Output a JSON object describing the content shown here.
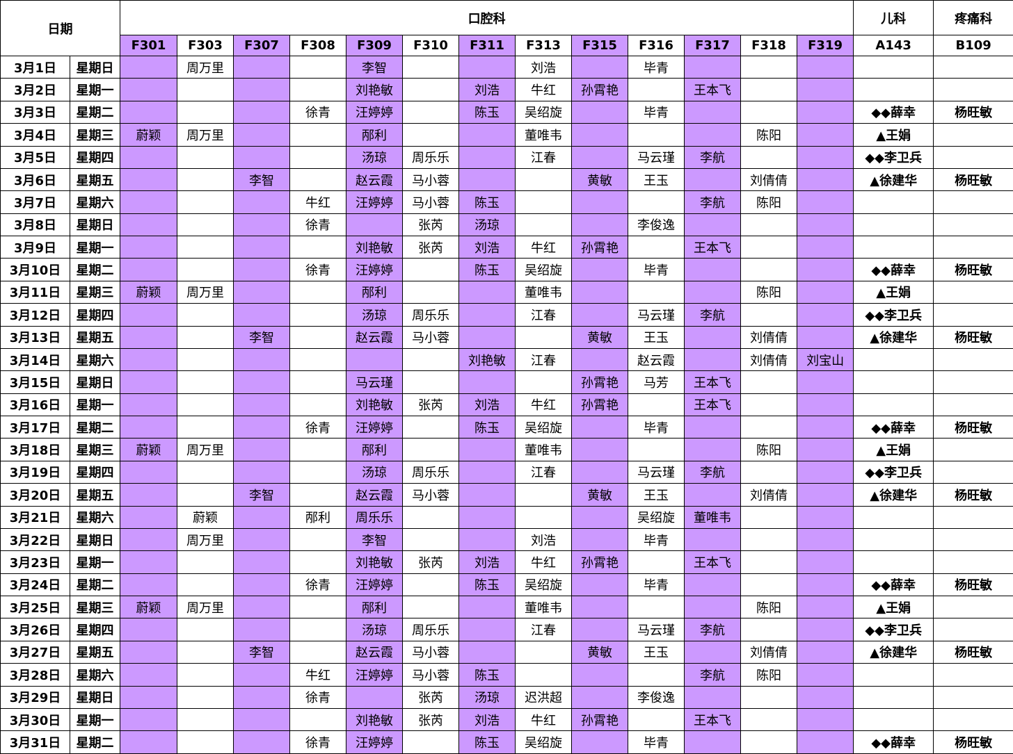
{
  "header": {
    "date": "日期",
    "groups": [
      {
        "label": "口腔科",
        "rooms": [
          "F301",
          "F303",
          "F307",
          "F308",
          "F309",
          "F310",
          "F311",
          "F313",
          "F315",
          "F316",
          "F317",
          "F318",
          "F319"
        ]
      },
      {
        "label": "儿科",
        "rooms": [
          "A143"
        ]
      },
      {
        "label": "疼痛科",
        "rooms": [
          "B109"
        ]
      }
    ]
  },
  "rows": [
    {
      "date": "3月1日",
      "weekday": "星期日",
      "cells": [
        null,
        "周万里",
        null,
        null,
        "李智",
        null,
        null,
        "刘浩",
        null,
        "毕青",
        null,
        null,
        null,
        null,
        null
      ]
    },
    {
      "date": "3月2日",
      "weekday": "星期一",
      "cells": [
        null,
        null,
        null,
        null,
        "刘艳敏",
        null,
        "刘浩",
        "牛红",
        "孙霄艳",
        null,
        "王本飞",
        null,
        null,
        null,
        null
      ]
    },
    {
      "date": "3月3日",
      "weekday": "星期二",
      "cells": [
        null,
        null,
        null,
        "徐青",
        "汪婷婷",
        null,
        "陈玉",
        "吴绍旋",
        null,
        "毕青",
        null,
        null,
        null,
        "◆◆薛幸",
        "杨旺敏"
      ]
    },
    {
      "date": "3月4日",
      "weekday": "星期三",
      "cells": [
        "蔚颖",
        "周万里",
        null,
        null,
        "邴利",
        null,
        null,
        "董唯韦",
        null,
        null,
        null,
        "陈阳",
        null,
        "▲王娟",
        null
      ]
    },
    {
      "date": "3月5日",
      "weekday": "星期四",
      "cells": [
        null,
        null,
        null,
        null,
        "汤琼",
        "周乐乐",
        null,
        "江春",
        null,
        "马云瑾",
        "李航",
        null,
        null,
        "◆◆李卫兵",
        null
      ]
    },
    {
      "date": "3月6日",
      "weekday": "星期五",
      "cells": [
        null,
        null,
        "李智",
        null,
        "赵云霞",
        "马小蓉",
        null,
        null,
        "黄敏",
        "王玉",
        null,
        "刘倩倩",
        null,
        "▲徐建华",
        "杨旺敏"
      ]
    },
    {
      "date": "3月7日",
      "weekday": "星期六",
      "cells": [
        null,
        null,
        null,
        "牛红",
        "汪婷婷",
        "马小蓉",
        "陈玉",
        null,
        null,
        null,
        "李航",
        "陈阳",
        null,
        null,
        null
      ]
    },
    {
      "date": "3月8日",
      "weekday": "星期日",
      "cells": [
        null,
        null,
        null,
        "徐青",
        null,
        "张芮",
        "汤琼",
        null,
        null,
        "李俊逸",
        null,
        null,
        null,
        null,
        null
      ]
    },
    {
      "date": "3月9日",
      "weekday": "星期一",
      "cells": [
        null,
        null,
        null,
        null,
        "刘艳敏",
        "张芮",
        "刘浩",
        "牛红",
        "孙霄艳",
        null,
        "王本飞",
        null,
        null,
        null,
        null
      ]
    },
    {
      "date": "3月10日",
      "weekday": "星期二",
      "cells": [
        null,
        null,
        null,
        "徐青",
        "汪婷婷",
        null,
        "陈玉",
        "吴绍旋",
        null,
        "毕青",
        null,
        null,
        null,
        "◆◆薛幸",
        "杨旺敏"
      ]
    },
    {
      "date": "3月11日",
      "weekday": "星期三",
      "cells": [
        "蔚颖",
        "周万里",
        null,
        null,
        "邴利",
        null,
        null,
        "董唯韦",
        null,
        null,
        null,
        "陈阳",
        null,
        "▲王娟",
        null
      ]
    },
    {
      "date": "3月12日",
      "weekday": "星期四",
      "cells": [
        null,
        null,
        null,
        null,
        "汤琼",
        "周乐乐",
        null,
        "江春",
        null,
        "马云瑾",
        "李航",
        null,
        null,
        "◆◆李卫兵",
        null
      ]
    },
    {
      "date": "3月13日",
      "weekday": "星期五",
      "cells": [
        null,
        null,
        "李智",
        null,
        "赵云霞",
        "马小蓉",
        null,
        null,
        "黄敏",
        "王玉",
        null,
        "刘倩倩",
        null,
        "▲徐建华",
        "杨旺敏"
      ]
    },
    {
      "date": "3月14日",
      "weekday": "星期六",
      "cells": [
        null,
        null,
        null,
        null,
        null,
        null,
        "刘艳敏",
        "江春",
        null,
        "赵云霞",
        null,
        "刘倩倩",
        "刘宝山",
        null,
        null
      ]
    },
    {
      "date": "3月15日",
      "weekday": "星期日",
      "cells": [
        null,
        null,
        null,
        null,
        "马云瑾",
        null,
        null,
        null,
        "孙霄艳",
        "马芳",
        "王本飞",
        null,
        null,
        null,
        null
      ]
    },
    {
      "date": "3月16日",
      "weekday": "星期一",
      "cells": [
        null,
        null,
        null,
        null,
        "刘艳敏",
        "张芮",
        "刘浩",
        "牛红",
        "孙霄艳",
        null,
        "王本飞",
        null,
        null,
        null,
        null
      ]
    },
    {
      "date": "3月17日",
      "weekday": "星期二",
      "cells": [
        null,
        null,
        null,
        "徐青",
        "汪婷婷",
        null,
        "陈玉",
        "吴绍旋",
        null,
        "毕青",
        null,
        null,
        null,
        "◆◆薛幸",
        "杨旺敏"
      ]
    },
    {
      "date": "3月18日",
      "weekday": "星期三",
      "cells": [
        "蔚颖",
        "周万里",
        null,
        null,
        "邴利",
        null,
        null,
        "董唯韦",
        null,
        null,
        null,
        "陈阳",
        null,
        "▲王娟",
        null
      ]
    },
    {
      "date": "3月19日",
      "weekday": "星期四",
      "cells": [
        null,
        null,
        null,
        null,
        "汤琼",
        "周乐乐",
        null,
        "江春",
        null,
        "马云瑾",
        "李航",
        null,
        null,
        "◆◆李卫兵",
        null
      ]
    },
    {
      "date": "3月20日",
      "weekday": "星期五",
      "cells": [
        null,
        null,
        "李智",
        null,
        "赵云霞",
        "马小蓉",
        null,
        null,
        "黄敏",
        "王玉",
        null,
        "刘倩倩",
        null,
        "▲徐建华",
        "杨旺敏"
      ]
    },
    {
      "date": "3月21日",
      "weekday": "星期六",
      "cells": [
        null,
        "蔚颖",
        null,
        "邴利",
        "周乐乐",
        null,
        null,
        null,
        null,
        "吴绍旋",
        "董唯韦",
        null,
        null,
        null,
        null
      ]
    },
    {
      "date": "3月22日",
      "weekday": "星期日",
      "cells": [
        null,
        "周万里",
        null,
        null,
        "李智",
        null,
        null,
        "刘浩",
        null,
        "毕青",
        null,
        null,
        null,
        null,
        null
      ]
    },
    {
      "date": "3月23日",
      "weekday": "星期一",
      "cells": [
        null,
        null,
        null,
        null,
        "刘艳敏",
        "张芮",
        "刘浩",
        "牛红",
        "孙霄艳",
        null,
        "王本飞",
        null,
        null,
        null,
        null
      ]
    },
    {
      "date": "3月24日",
      "weekday": "星期二",
      "cells": [
        null,
        null,
        null,
        "徐青",
        "汪婷婷",
        null,
        "陈玉",
        "吴绍旋",
        null,
        "毕青",
        null,
        null,
        null,
        "◆◆薛幸",
        "杨旺敏"
      ]
    },
    {
      "date": "3月25日",
      "weekday": "星期三",
      "cells": [
        "蔚颖",
        "周万里",
        null,
        null,
        "邴利",
        null,
        null,
        "董唯韦",
        null,
        null,
        null,
        "陈阳",
        null,
        "▲王娟",
        null
      ]
    },
    {
      "date": "3月26日",
      "weekday": "星期四",
      "cells": [
        null,
        null,
        null,
        null,
        "汤琼",
        "周乐乐",
        null,
        "江春",
        null,
        "马云瑾",
        "李航",
        null,
        null,
        "◆◆李卫兵",
        null
      ]
    },
    {
      "date": "3月27日",
      "weekday": "星期五",
      "cells": [
        null,
        null,
        "李智",
        null,
        "赵云霞",
        "马小蓉",
        null,
        null,
        "黄敏",
        "王玉",
        null,
        "刘倩倩",
        null,
        "▲徐建华",
        "杨旺敏"
      ]
    },
    {
      "date": "3月28日",
      "weekday": "星期六",
      "cells": [
        null,
        null,
        null,
        "牛红",
        "汪婷婷",
        "马小蓉",
        "陈玉",
        null,
        null,
        null,
        "李航",
        "陈阳",
        null,
        null,
        null
      ]
    },
    {
      "date": "3月29日",
      "weekday": "星期日",
      "cells": [
        null,
        null,
        null,
        "徐青",
        null,
        "张芮",
        "汤琼",
        "迟洪超",
        null,
        "李俊逸",
        null,
        null,
        null,
        null,
        null
      ]
    },
    {
      "date": "3月30日",
      "weekday": "星期一",
      "cells": [
        null,
        null,
        null,
        null,
        "刘艳敏",
        "张芮",
        "刘浩",
        "牛红",
        "孙霄艳",
        null,
        "王本飞",
        null,
        null,
        null,
        null
      ]
    },
    {
      "date": "3月31日",
      "weekday": "星期二",
      "cells": [
        null,
        null,
        null,
        "徐青",
        "汪婷婷",
        null,
        "陈玉",
        "吴绍旋",
        null,
        "毕青",
        null,
        null,
        null,
        "◆◆薛幸",
        "杨旺敏"
      ]
    }
  ]
}
